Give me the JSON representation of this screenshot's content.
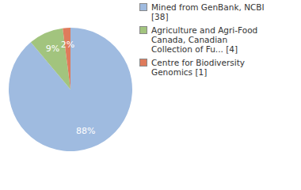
{
  "chart_data": {
    "type": "pie",
    "categories": [
      "Mined from GenBank, NCBI [38]",
      "Agriculture and Agri-Food Canada, Canadian Collection of Fu... [4]",
      "Centre for Biodiversity Genomics [1]"
    ],
    "values": [
      88,
      9,
      2
    ],
    "value_labels": [
      "88%",
      "9%",
      "2%"
    ],
    "colors": [
      "#9fbbe0",
      "#a2c47e",
      "#df7b5c"
    ],
    "data_labels": true,
    "legend": "right"
  }
}
